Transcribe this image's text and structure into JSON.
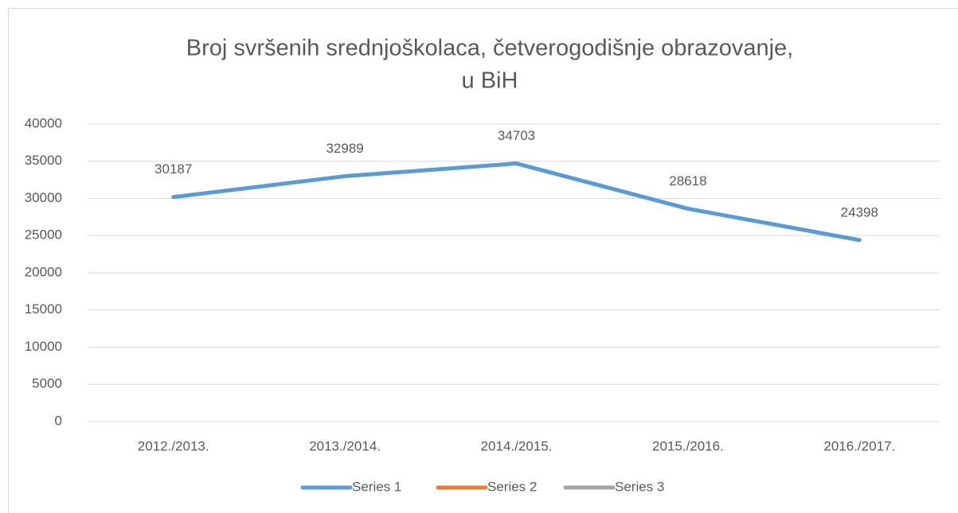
{
  "chart_data": {
    "type": "line",
    "title": [
      "Broj svršenih srednjoškolaca, četverogodišnje obrazovanje,",
      "u BiH"
    ],
    "categories": [
      "2012./2013.",
      "2013./2014.",
      "2014./2015.",
      "2015./2016.",
      "2016./2017."
    ],
    "series": [
      {
        "name": "Series 1",
        "color": "#5b9bd5",
        "values": [
          30187,
          32989,
          34703,
          28618,
          24398
        ]
      },
      {
        "name": "Series 2",
        "color": "#ed7d31",
        "values": [
          null,
          null,
          null,
          null,
          null
        ]
      },
      {
        "name": "Series 3",
        "color": "#a5a5a5",
        "values": [
          null,
          null,
          null,
          null,
          null
        ]
      }
    ],
    "ylim": [
      0,
      40000
    ],
    "yticks": [
      0,
      5000,
      10000,
      15000,
      20000,
      25000,
      30000,
      35000,
      40000
    ],
    "grid": true,
    "legend": "bottom",
    "data_labels": true
  }
}
